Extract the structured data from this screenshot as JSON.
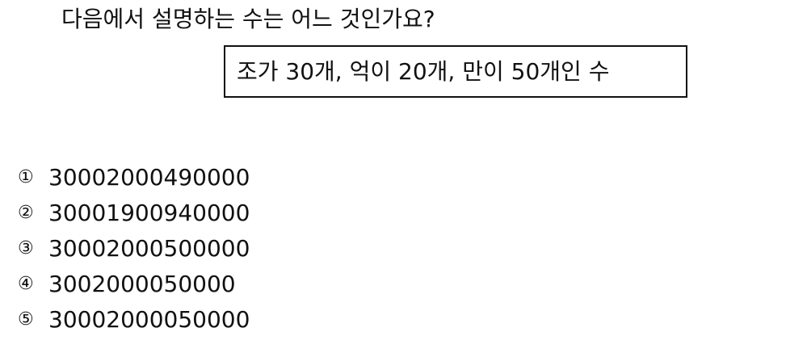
{
  "question": "다음에서 설명하는 수는 어느 것인가요?",
  "condition": "조가 30개, 억이 20개, 만이 50개인 수",
  "choices": [
    {
      "marker": "①",
      "value": "30002000490000"
    },
    {
      "marker": "②",
      "value": "30001900940000"
    },
    {
      "marker": "③",
      "value": "30002000500000"
    },
    {
      "marker": "④",
      "value": "3002000050000"
    },
    {
      "marker": "⑤",
      "value": "30002000050000"
    }
  ]
}
